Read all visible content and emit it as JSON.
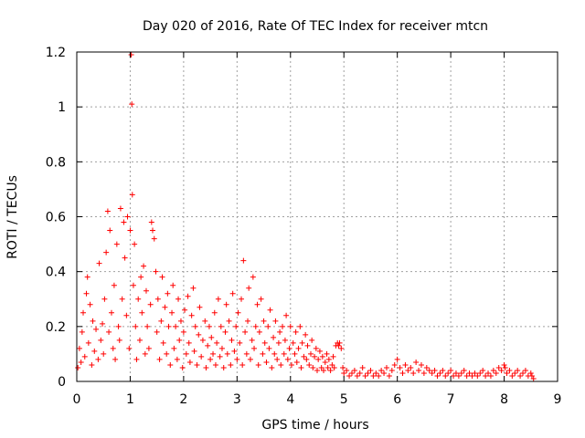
{
  "chart_data": {
    "type": "scatter",
    "title": "Day 020 of 2016, Rate Of TEC Index for receiver mtcn",
    "xlabel": "GPS time / hours",
    "ylabel": "ROTI / TECUs",
    "xlim": [
      0,
      9
    ],
    "ylim": [
      0,
      1.2
    ],
    "x_ticks": [
      0,
      1,
      2,
      3,
      4,
      5,
      6,
      7,
      8,
      9
    ],
    "x_tick_labels": [
      "0",
      "1",
      "2",
      "3",
      "4",
      "5",
      "6",
      "7",
      "8",
      "9"
    ],
    "y_ticks": [
      0,
      0.2,
      0.4,
      0.6,
      0.8,
      1.0,
      1.2
    ],
    "y_tick_labels": [
      "0",
      "0.2",
      "0.4",
      "0.6",
      "0.8",
      "1",
      "1.2"
    ],
    "grid": true,
    "marker": "plus",
    "color": "#ff0000",
    "series": [
      {
        "name": "ROTI",
        "points": [
          [
            0.02,
            0.05
          ],
          [
            0.05,
            0.12
          ],
          [
            0.08,
            0.07
          ],
          [
            0.1,
            0.18
          ],
          [
            0.12,
            0.25
          ],
          [
            0.15,
            0.09
          ],
          [
            0.18,
            0.32
          ],
          [
            0.2,
            0.38
          ],
          [
            0.22,
            0.14
          ],
          [
            0.25,
            0.28
          ],
          [
            0.28,
            0.06
          ],
          [
            0.3,
            0.22
          ],
          [
            0.33,
            0.11
          ],
          [
            0.36,
            0.19
          ],
          [
            0.4,
            0.08
          ],
          [
            0.42,
            0.43
          ],
          [
            0.45,
            0.15
          ],
          [
            0.48,
            0.21
          ],
          [
            0.5,
            0.1
          ],
          [
            0.52,
            0.3
          ],
          [
            0.55,
            0.47
          ],
          [
            0.58,
            0.62
          ],
          [
            0.6,
            0.18
          ],
          [
            0.62,
            0.55
          ],
          [
            0.65,
            0.25
          ],
          [
            0.68,
            0.12
          ],
          [
            0.7,
            0.35
          ],
          [
            0.72,
            0.08
          ],
          [
            0.75,
            0.5
          ],
          [
            0.78,
            0.2
          ],
          [
            0.8,
            0.15
          ],
          [
            0.82,
            0.63
          ],
          [
            0.85,
            0.3
          ],
          [
            0.88,
            0.58
          ],
          [
            0.9,
            0.45
          ],
          [
            0.93,
            0.24
          ],
          [
            0.95,
            0.6
          ],
          [
            0.98,
            0.12
          ],
          [
            1.0,
            0.55
          ],
          [
            1.02,
            1.19
          ],
          [
            1.03,
            1.01
          ],
          [
            1.04,
            0.68
          ],
          [
            1.06,
            0.35
          ],
          [
            1.08,
            0.5
          ],
          [
            1.1,
            0.2
          ],
          [
            1.12,
            0.08
          ],
          [
            1.15,
            0.3
          ],
          [
            1.18,
            0.15
          ],
          [
            1.2,
            0.38
          ],
          [
            1.22,
            0.25
          ],
          [
            1.25,
            0.42
          ],
          [
            1.28,
            0.1
          ],
          [
            1.3,
            0.33
          ],
          [
            1.32,
            0.2
          ],
          [
            1.35,
            0.12
          ],
          [
            1.38,
            0.28
          ],
          [
            1.4,
            0.58
          ],
          [
            1.42,
            0.55
          ],
          [
            1.45,
            0.52
          ],
          [
            1.48,
            0.4
          ],
          [
            1.5,
            0.18
          ],
          [
            1.52,
            0.3
          ],
          [
            1.55,
            0.08
          ],
          [
            1.58,
            0.22
          ],
          [
            1.6,
            0.38
          ],
          [
            1.62,
            0.14
          ],
          [
            1.65,
            0.27
          ],
          [
            1.68,
            0.1
          ],
          [
            1.7,
            0.32
          ],
          [
            1.72,
            0.2
          ],
          [
            1.75,
            0.06
          ],
          [
            1.78,
            0.25
          ],
          [
            1.8,
            0.35
          ],
          [
            1.82,
            0.12
          ],
          [
            1.85,
            0.2
          ],
          [
            1.88,
            0.08
          ],
          [
            1.9,
            0.3
          ],
          [
            1.92,
            0.15
          ],
          [
            1.95,
            0.22
          ],
          [
            1.98,
            0.05
          ],
          [
            2.0,
            0.18
          ],
          [
            2.02,
            0.26
          ],
          [
            2.05,
            0.1
          ],
          [
            2.08,
            0.31
          ],
          [
            2.1,
            0.14
          ],
          [
            2.12,
            0.07
          ],
          [
            2.15,
            0.24
          ],
          [
            2.18,
            0.34
          ],
          [
            2.2,
            0.11
          ],
          [
            2.22,
            0.2
          ],
          [
            2.25,
            0.06
          ],
          [
            2.28,
            0.17
          ],
          [
            2.3,
            0.27
          ],
          [
            2.33,
            0.09
          ],
          [
            2.36,
            0.15
          ],
          [
            2.4,
            0.22
          ],
          [
            2.42,
            0.05
          ],
          [
            2.45,
            0.13
          ],
          [
            2.48,
            0.2
          ],
          [
            2.5,
            0.08
          ],
          [
            2.52,
            0.16
          ],
          [
            2.55,
            0.1
          ],
          [
            2.58,
            0.25
          ],
          [
            2.6,
            0.06
          ],
          [
            2.62,
            0.14
          ],
          [
            2.65,
            0.3
          ],
          [
            2.68,
            0.09
          ],
          [
            2.7,
            0.2
          ],
          [
            2.72,
            0.12
          ],
          [
            2.75,
            0.05
          ],
          [
            2.78,
            0.18
          ],
          [
            2.8,
            0.28
          ],
          [
            2.82,
            0.1
          ],
          [
            2.85,
            0.22
          ],
          [
            2.88,
            0.06
          ],
          [
            2.9,
            0.15
          ],
          [
            2.92,
            0.32
          ],
          [
            2.95,
            0.11
          ],
          [
            2.98,
            0.2
          ],
          [
            3.0,
            0.08
          ],
          [
            3.02,
            0.25
          ],
          [
            3.05,
            0.14
          ],
          [
            3.08,
            0.3
          ],
          [
            3.1,
            0.06
          ],
          [
            3.12,
            0.44
          ],
          [
            3.15,
            0.18
          ],
          [
            3.18,
            0.1
          ],
          [
            3.2,
            0.22
          ],
          [
            3.22,
            0.34
          ],
          [
            3.25,
            0.08
          ],
          [
            3.28,
            0.15
          ],
          [
            3.3,
            0.38
          ],
          [
            3.32,
            0.12
          ],
          [
            3.35,
            0.2
          ],
          [
            3.38,
            0.28
          ],
          [
            3.4,
            0.06
          ],
          [
            3.42,
            0.18
          ],
          [
            3.45,
            0.3
          ],
          [
            3.48,
            0.1
          ],
          [
            3.5,
            0.22
          ],
          [
            3.52,
            0.14
          ],
          [
            3.55,
            0.07
          ],
          [
            3.58,
            0.2
          ],
          [
            3.6,
            0.12
          ],
          [
            3.62,
            0.26
          ],
          [
            3.65,
            0.05
          ],
          [
            3.68,
            0.16
          ],
          [
            3.7,
            0.1
          ],
          [
            3.72,
            0.22
          ],
          [
            3.75,
            0.08
          ],
          [
            3.78,
            0.14
          ],
          [
            3.8,
            0.18
          ],
          [
            3.82,
            0.06
          ],
          [
            3.85,
            0.2
          ],
          [
            3.88,
            0.1
          ],
          [
            3.9,
            0.15
          ],
          [
            3.92,
            0.24
          ],
          [
            3.95,
            0.08
          ],
          [
            3.98,
            0.12
          ],
          [
            4.0,
            0.2
          ],
          [
            4.02,
            0.06
          ],
          [
            4.05,
            0.14
          ],
          [
            4.08,
            0.1
          ],
          [
            4.1,
            0.18
          ],
          [
            4.12,
            0.07
          ],
          [
            4.15,
            0.12
          ],
          [
            4.18,
            0.2
          ],
          [
            4.2,
            0.05
          ],
          [
            4.22,
            0.14
          ],
          [
            4.25,
            0.09
          ],
          [
            4.28,
            0.17
          ],
          [
            4.3,
            0.08
          ],
          [
            4.32,
            0.13
          ],
          [
            4.35,
            0.06
          ],
          [
            4.38,
            0.1
          ],
          [
            4.4,
            0.15
          ],
          [
            4.42,
            0.05
          ],
          [
            4.45,
            0.09
          ],
          [
            4.48,
            0.12
          ],
          [
            4.5,
            0.04
          ],
          [
            4.52,
            0.08
          ],
          [
            4.55,
            0.11
          ],
          [
            4.58,
            0.05
          ],
          [
            4.6,
            0.09
          ],
          [
            4.62,
            0.04
          ],
          [
            4.65,
            0.07
          ],
          [
            4.68,
            0.1
          ],
          [
            4.7,
            0.05
          ],
          [
            4.72,
            0.08
          ],
          [
            4.75,
            0.04
          ],
          [
            4.78,
            0.06
          ],
          [
            4.8,
            0.09
          ],
          [
            4.82,
            0.05
          ],
          [
            4.85,
            0.13
          ],
          [
            4.88,
            0.14
          ],
          [
            4.9,
            0.13
          ],
          [
            4.92,
            0.14
          ],
          [
            4.95,
            0.12
          ],
          [
            4.98,
            0.05
          ],
          [
            5.0,
            0.03
          ],
          [
            5.05,
            0.04
          ],
          [
            5.1,
            0.02
          ],
          [
            5.15,
            0.03
          ],
          [
            5.2,
            0.04
          ],
          [
            5.25,
            0.02
          ],
          [
            5.3,
            0.03
          ],
          [
            5.35,
            0.05
          ],
          [
            5.4,
            0.02
          ],
          [
            5.45,
            0.03
          ],
          [
            5.5,
            0.04
          ],
          [
            5.55,
            0.02
          ],
          [
            5.6,
            0.03
          ],
          [
            5.65,
            0.02
          ],
          [
            5.7,
            0.04
          ],
          [
            5.75,
            0.03
          ],
          [
            5.8,
            0.05
          ],
          [
            5.85,
            0.02
          ],
          [
            5.9,
            0.04
          ],
          [
            5.95,
            0.06
          ],
          [
            6.0,
            0.08
          ],
          [
            6.05,
            0.05
          ],
          [
            6.1,
            0.03
          ],
          [
            6.15,
            0.06
          ],
          [
            6.2,
            0.04
          ],
          [
            6.25,
            0.05
          ],
          [
            6.3,
            0.03
          ],
          [
            6.35,
            0.07
          ],
          [
            6.4,
            0.04
          ],
          [
            6.45,
            0.06
          ],
          [
            6.5,
            0.03
          ],
          [
            6.55,
            0.05
          ],
          [
            6.6,
            0.04
          ],
          [
            6.65,
            0.03
          ],
          [
            6.7,
            0.04
          ],
          [
            6.75,
            0.02
          ],
          [
            6.8,
            0.03
          ],
          [
            6.85,
            0.04
          ],
          [
            6.9,
            0.02
          ],
          [
            6.95,
            0.03
          ],
          [
            7.0,
            0.04
          ],
          [
            7.05,
            0.02
          ],
          [
            7.1,
            0.03
          ],
          [
            7.15,
            0.02
          ],
          [
            7.2,
            0.03
          ],
          [
            7.25,
            0.04
          ],
          [
            7.3,
            0.02
          ],
          [
            7.35,
            0.03
          ],
          [
            7.4,
            0.02
          ],
          [
            7.45,
            0.03
          ],
          [
            7.5,
            0.02
          ],
          [
            7.55,
            0.03
          ],
          [
            7.6,
            0.04
          ],
          [
            7.65,
            0.02
          ],
          [
            7.7,
            0.03
          ],
          [
            7.75,
            0.02
          ],
          [
            7.8,
            0.04
          ],
          [
            7.85,
            0.03
          ],
          [
            7.9,
            0.05
          ],
          [
            7.95,
            0.04
          ],
          [
            8.0,
            0.06
          ],
          [
            8.02,
            0.05
          ],
          [
            8.05,
            0.03
          ],
          [
            8.1,
            0.04
          ],
          [
            8.15,
            0.02
          ],
          [
            8.2,
            0.03
          ],
          [
            8.25,
            0.04
          ],
          [
            8.3,
            0.02
          ],
          [
            8.35,
            0.03
          ],
          [
            8.4,
            0.04
          ],
          [
            8.45,
            0.02
          ],
          [
            8.5,
            0.03
          ],
          [
            8.52,
            0.02
          ],
          [
            8.55,
            0.01
          ]
        ]
      }
    ]
  }
}
